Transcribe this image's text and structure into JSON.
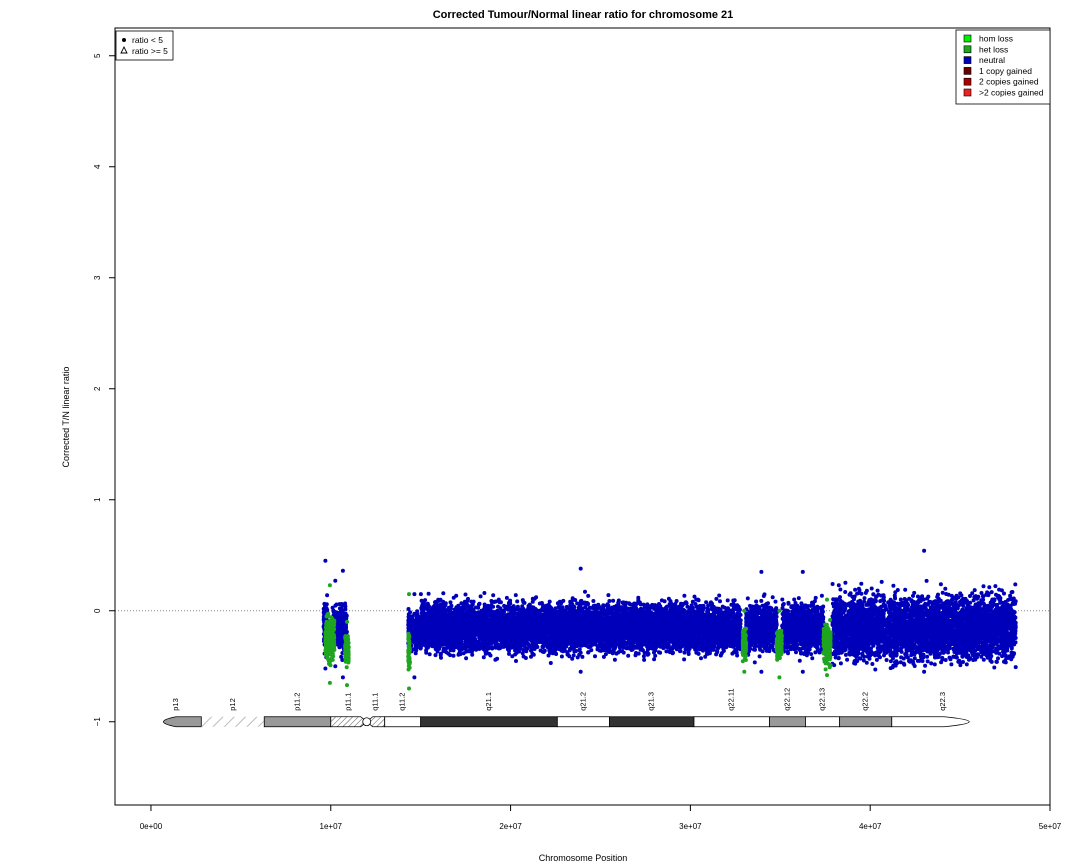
{
  "chart_data": {
    "type": "scatter",
    "title": "Corrected Tumour/Normal linear ratio for chromosome  21",
    "xlabel": "Chromosome Position",
    "ylabel": "Corrected T/N linear ratio",
    "xlim": [
      -2000000,
      50000000
    ],
    "ylim": [
      -1.75,
      5.25
    ],
    "x_ticks": [
      {
        "value": 0,
        "label": "0e+00"
      },
      {
        "value": 10000000,
        "label": "1e+07"
      },
      {
        "value": 20000000,
        "label": "2e+07"
      },
      {
        "value": 30000000,
        "label": "3e+07"
      },
      {
        "value": 40000000,
        "label": "4e+07"
      },
      {
        "value": 50000000,
        "label": "5e+07"
      }
    ],
    "y_ticks": [
      {
        "value": -1,
        "label": "−1"
      },
      {
        "value": 0,
        "label": "0"
      },
      {
        "value": 1,
        "label": "1"
      },
      {
        "value": 2,
        "label": "2"
      },
      {
        "value": 3,
        "label": "3"
      },
      {
        "value": 4,
        "label": "4"
      },
      {
        "value": 5,
        "label": "5"
      }
    ],
    "reference_line_y": 0,
    "colors": {
      "hom_loss": "#00ee00",
      "het_loss": "#1fa51f",
      "neutral": "#0000bb",
      "one_copy_gained": "#6b0000",
      "two_copies_gained": "#aa0000",
      "gt_two_copies_gained": "#ee2222",
      "reference_line": "#888888"
    },
    "shape_legend": [
      {
        "symbol": "●",
        "label": "ratio < 5"
      },
      {
        "symbol": "△",
        "label": "ratio >= 5"
      }
    ],
    "state_legend": [
      {
        "label": "hom loss",
        "color": "#00ee00"
      },
      {
        "label": "het loss",
        "color": "#1fa51f"
      },
      {
        "label": "neutral",
        "color": "#0000bb"
      },
      {
        "label": "1 copy gained",
        "color": "#6b0000"
      },
      {
        "label": "2 copies gained",
        "color": "#aa0000"
      },
      {
        "label": ">2 copies gained",
        "color": "#ee2222"
      }
    ],
    "series": [
      {
        "state": "neutral",
        "color": "#0000bb",
        "segments": [
          {
            "x": [
              9600000,
              9800000
            ],
            "y_median": -0.12,
            "y_range": [
              -0.52,
              0.45
            ]
          },
          {
            "x": [
              10100000,
              10400000
            ],
            "y_median": -0.15,
            "y_range": [
              -0.5,
              0.27
            ]
          },
          {
            "x": [
              10450000,
              10900000
            ],
            "y_median": -0.15,
            "y_range": [
              -0.6,
              0.36
            ]
          },
          {
            "x": [
              14300000,
              15000000
            ],
            "y_median": -0.2,
            "y_range": [
              -0.6,
              0.15
            ]
          },
          {
            "x": [
              15000000,
              32800000
            ],
            "y_median": -0.15,
            "y_range": [
              -0.55,
              0.38
            ]
          },
          {
            "x": [
              33100000,
              34800000
            ],
            "y_median": -0.15,
            "y_range": [
              -0.55,
              0.35
            ]
          },
          {
            "x": [
              35100000,
              37400000
            ],
            "y_median": -0.15,
            "y_range": [
              -0.55,
              0.35
            ]
          },
          {
            "x": [
              37900000,
              48100000
            ],
            "y_median": -0.15,
            "y_range": [
              -0.55,
              0.54
            ]
          }
        ]
      },
      {
        "state": "het loss",
        "color": "#1fa51f",
        "segments": [
          {
            "x": [
              9700000,
              10200000
            ],
            "y_median": -0.25,
            "y_range": [
              -0.65,
              0.23
            ]
          },
          {
            "x": [
              10800000,
              11000000
            ],
            "y_median": -0.35,
            "y_range": [
              -0.67,
              -0.1
            ]
          },
          {
            "x": [
              14300000,
              14400000
            ],
            "y_median": -0.35,
            "y_range": [
              -0.7,
              0.15
            ]
          },
          {
            "x": [
              32900000,
              33100000
            ],
            "y_median": -0.3,
            "y_range": [
              -0.55,
              0.0
            ]
          },
          {
            "x": [
              34800000,
              35100000
            ],
            "y_median": -0.3,
            "y_range": [
              -0.6,
              0.0
            ]
          },
          {
            "x": [
              37400000,
              37800000
            ],
            "y_median": -0.3,
            "y_range": [
              -0.58,
              0.1
            ]
          }
        ]
      }
    ],
    "ideogram": {
      "y": -1,
      "bands": [
        {
          "name": "p13",
          "start": 0,
          "end": 2800000,
          "stain": "gpos50"
        },
        {
          "name": "p12",
          "start": 2800000,
          "end": 6300000,
          "stain": "stalk"
        },
        {
          "name": "p11.2",
          "start": 6300000,
          "end": 10000000,
          "stain": "gvar"
        },
        {
          "name": "p11.1",
          "start": 10000000,
          "end": 12000000,
          "stain": "acen"
        },
        {
          "name": "q11.1",
          "start": 12000000,
          "end": 13000000,
          "stain": "acen"
        },
        {
          "name": "q11.2",
          "start": 13000000,
          "end": 15000000,
          "stain": "gneg"
        },
        {
          "name": "q21.1",
          "start": 15000000,
          "end": 22600000,
          "stain": "gpos100"
        },
        {
          "name": "q21.2",
          "start": 22600000,
          "end": 25500000,
          "stain": "gneg"
        },
        {
          "name": "q21.3",
          "start": 25500000,
          "end": 30200000,
          "stain": "gpos75"
        },
        {
          "name": "q22.11",
          "start": 30200000,
          "end": 34400000,
          "stain": "gneg"
        },
        {
          "name": "q22.12",
          "start": 34400000,
          "end": 36400000,
          "stain": "gpos50"
        },
        {
          "name": "q22.13",
          "start": 36400000,
          "end": 38300000,
          "stain": "gneg"
        },
        {
          "name": "q22.2",
          "start": 38300000,
          "end": 41200000,
          "stain": "gpos50"
        },
        {
          "name": "q22.3",
          "start": 41200000,
          "end": 46900000,
          "stain": "gneg"
        }
      ]
    }
  }
}
